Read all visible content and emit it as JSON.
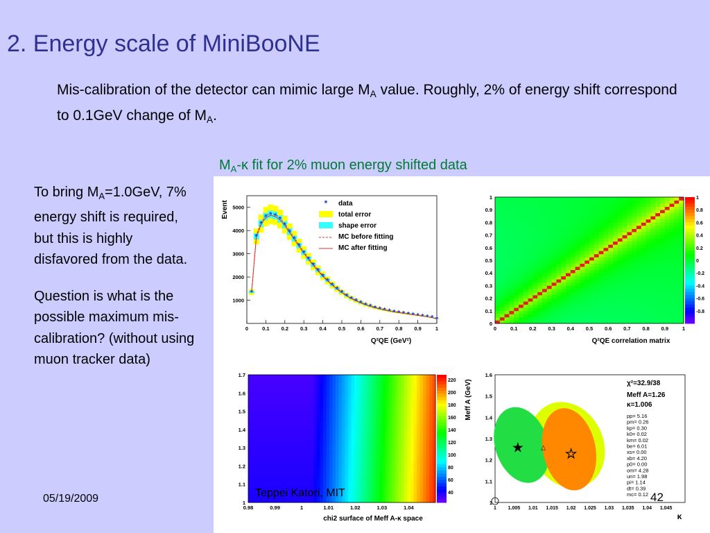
{
  "slide": {
    "title": "2. Energy scale of MiniBooNE",
    "intro": {
      "t1": "Mis-calibration of the detector can mimic large M",
      "sub1": "A",
      "t2": " value. Roughly, 2% of energy shift correspond to 0.1GeV change of M",
      "sub2": "A",
      "t3": "."
    },
    "figure_caption": {
      "pre": "M",
      "sub": "A",
      "post": "-κ fit for 2% muon energy shifted data"
    },
    "left_text": {
      "p1_pre": "To bring M",
      "p1_sub": "A",
      "p1_post": "=1.0GeV, 7% energy shift is required, but this is highly disfavored from the data.",
      "p2": "Question is what is the possible maximum mis-calibration? (without using muon tracker data)"
    },
    "footer": {
      "date": "05/19/2009",
      "author": "Teppei Katori, MIT",
      "slide_number": "42"
    }
  },
  "chart_data": [
    {
      "type": "scatter",
      "xlabel": "Q²QE (GeV²)",
      "ylabel": "Event",
      "xlim": [
        0,
        1.0
      ],
      "ylim": [
        0,
        5500
      ],
      "xticks": [
        "0",
        "0.1",
        "0.2",
        "0.3",
        "0.4",
        "0.5",
        "0.6",
        "0.7",
        "0.8",
        "0.9",
        "1"
      ],
      "yticks": [
        "1000",
        "2000",
        "3000",
        "4000",
        "5000"
      ],
      "legend": [
        "data",
        "total error",
        "shape error",
        "MC before fitting",
        "MC after fitting"
      ],
      "legend_position": "top-right",
      "colors": {
        "data": "#1a3fd6",
        "total_error": "#ffff00",
        "shape_error": "#33ffff",
        "mc_before": "#e0302a",
        "mc_after": "#e0302a"
      },
      "x": [
        0.025,
        0.05,
        0.075,
        0.1,
        0.125,
        0.15,
        0.175,
        0.2,
        0.225,
        0.25,
        0.275,
        0.3,
        0.325,
        0.35,
        0.375,
        0.4,
        0.425,
        0.45,
        0.475,
        0.5,
        0.525,
        0.55,
        0.575,
        0.6,
        0.625,
        0.65,
        0.675,
        0.7,
        0.725,
        0.75,
        0.775,
        0.8,
        0.825,
        0.85,
        0.875,
        0.9,
        0.925,
        0.95,
        0.975,
        1.0
      ],
      "y": [
        2950,
        3750,
        4300,
        4600,
        4700,
        4650,
        4500,
        4250,
        3950,
        3650,
        3350,
        3050,
        2780,
        2520,
        2280,
        2050,
        1850,
        1660,
        1490,
        1340,
        1200,
        1080,
        980,
        890,
        810,
        740,
        680,
        630,
        580,
        540,
        500,
        470,
        440,
        410,
        380,
        350,
        320,
        290,
        250,
        200
      ],
      "y_first": 1350
    },
    {
      "type": "heatmap",
      "xlabel": "Q²QE correlation matrix",
      "xlim": [
        0,
        1
      ],
      "ylim": [
        0,
        1
      ],
      "xticks": [
        "0",
        "0.1",
        "0.2",
        "0.3",
        "0.4",
        "0.5",
        "0.6",
        "0.7",
        "0.8",
        "0.9",
        "1"
      ],
      "yticks": [
        "0",
        "0.1",
        "0.2",
        "0.3",
        "0.4",
        "0.5",
        "0.6",
        "0.7",
        "0.8",
        "0.9",
        "1"
      ],
      "colorbar_ticks": [
        "1",
        "0.8",
        "0.6",
        "0.4",
        "0.2",
        "0",
        "-0.2",
        "-0.4",
        "-0.6",
        "-0.8"
      ]
    },
    {
      "type": "heatmap",
      "xlabel": "chi2 surface of Meff A-κ space",
      "xlim": [
        0.98,
        1.05
      ],
      "ylim": [
        1.0,
        1.7
      ],
      "xticks": [
        "0.98",
        "0.99",
        "1",
        "1.01",
        "1.02",
        "1.03",
        "1.04"
      ],
      "yticks": [
        "1",
        "1.1",
        "1.2",
        "1.3",
        "1.4",
        "1.5",
        "1.6",
        "1.7"
      ],
      "colorbar_ticks": [
        "220",
        "200",
        "180",
        "160",
        "140",
        "120",
        "100",
        "80",
        "60",
        "40"
      ]
    },
    {
      "type": "scatter",
      "xlabel": "κ",
      "ylabel": "Meff A (GeV)",
      "xlim": [
        1.0,
        1.05
      ],
      "ylim": [
        1.0,
        1.6
      ],
      "xticks": [
        "1",
        "1.005",
        "1.01",
        "1.015",
        "1.02",
        "1.025",
        "1.03",
        "1.035",
        "1.04",
        "1.045"
      ],
      "yticks": [
        "1",
        "1.1",
        "1.2",
        "1.3",
        "1.4",
        "1.5",
        "1.6"
      ],
      "best_fit_before": {
        "x": 1.006,
        "y": 1.26
      },
      "best_fit_after": {
        "x": 1.02,
        "y": 1.23
      },
      "stats": {
        "chi2": "χ²=32.9/38",
        "ma": "Meff A=1.26",
        "kappa": "κ=1.006",
        "params": [
          "pp= 5.16",
          "pm= 0.26",
          "kp= 0.30",
          "k0= 0.02",
          "km= 0.02",
          "be= 6.01",
          "xs= 0.00",
          "xb= 4.20",
          "p0= 0.00",
          "om= 4.28",
          "un= 1.98",
          "pi= 1.14",
          "dt= 0.39",
          "mc= 0.12"
        ]
      }
    }
  ]
}
